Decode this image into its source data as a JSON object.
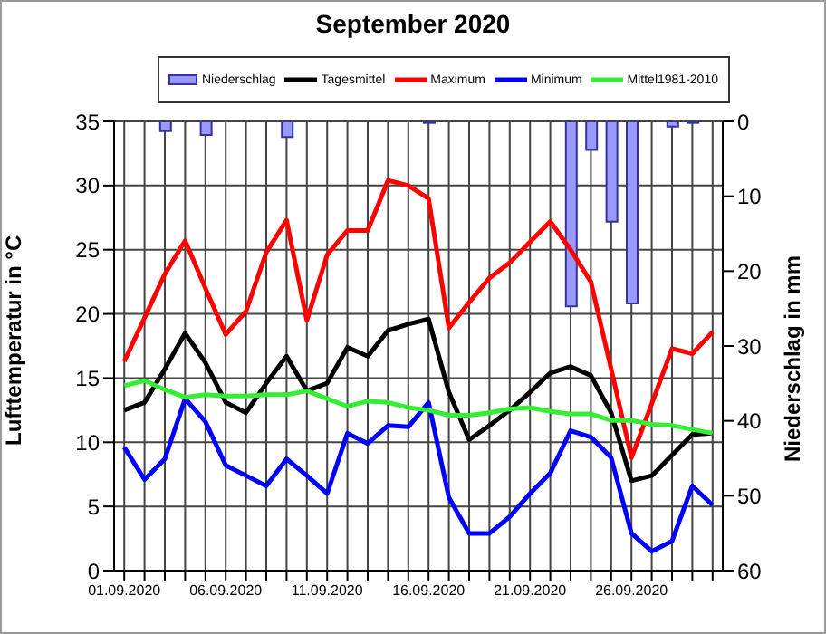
{
  "chart_data": {
    "type": "line",
    "title": "September 2020",
    "categories": [
      "01.09.2020",
      null,
      null,
      null,
      null,
      "06.09.2020",
      null,
      null,
      null,
      null,
      "11.09.2020",
      null,
      null,
      null,
      null,
      "16.09.2020",
      null,
      null,
      null,
      null,
      "21.09.2020",
      null,
      null,
      null,
      null,
      "26.09.2020",
      null,
      null,
      null,
      null
    ],
    "series": [
      {
        "name": "Niederschlag",
        "type": "bar",
        "axis": "y2",
        "color": "#9999ff",
        "values": [
          null,
          null,
          1.3,
          null,
          1.8,
          null,
          null,
          null,
          2.1,
          null,
          null,
          null,
          null,
          null,
          null,
          0.2,
          null,
          null,
          null,
          null,
          null,
          null,
          24.7,
          3.8,
          13.4,
          24.3,
          null,
          0.7,
          0.2,
          null
        ]
      },
      {
        "name": "Tagesmittel",
        "color": "#000000",
        "values": [
          12.5,
          13.1,
          15.7,
          18.5,
          16.2,
          13.1,
          12.3,
          14.6,
          16.7,
          14.0,
          14.6,
          17.4,
          16.7,
          18.7,
          19.2,
          19.6,
          13.9,
          10.2,
          11.3,
          12.5,
          13.9,
          15.4,
          15.9,
          15.2,
          12.3,
          7.0,
          7.4,
          9.0,
          10.6,
          10.7
        ]
      },
      {
        "name": "Maximum",
        "color": "#ff0000",
        "values": [
          16.3,
          19.7,
          23.1,
          25.7,
          22.0,
          18.4,
          20.2,
          24.8,
          27.3,
          19.5,
          24.6,
          26.5,
          26.5,
          30.4,
          30.0,
          29.0,
          18.9,
          20.9,
          22.8,
          24.0,
          25.6,
          27.2,
          25.0,
          22.5,
          15.7,
          8.8,
          13.0,
          17.3,
          16.9,
          18.6
        ]
      },
      {
        "name": "Minimum",
        "color": "#0000ff",
        "values": [
          9.6,
          7.1,
          8.7,
          13.4,
          11.6,
          8.2,
          7.4,
          6.6,
          8.7,
          7.4,
          6.0,
          10.7,
          9.9,
          11.3,
          11.2,
          13.1,
          5.7,
          2.9,
          2.9,
          4.2,
          6.0,
          7.6,
          10.9,
          10.4,
          8.8,
          2.9,
          1.5,
          2.3,
          6.6,
          5.1
        ]
      },
      {
        "name": "Mittel1981-2010",
        "color": "#33ee33",
        "values": [
          14.4,
          14.8,
          14.1,
          13.5,
          13.7,
          13.6,
          13.6,
          13.7,
          13.7,
          14.0,
          13.4,
          12.8,
          13.2,
          13.1,
          12.7,
          12.5,
          12.1,
          12.1,
          12.3,
          12.6,
          12.7,
          12.4,
          12.2,
          12.2,
          11.7,
          11.7,
          11.4,
          11.3,
          11.0,
          10.7
        ]
      }
    ],
    "ylabel": "Lufttemperatur in °C",
    "y2label": "Niederschlag in mm",
    "ylim": [
      0,
      35
    ],
    "yticks": [
      0,
      5,
      10,
      15,
      20,
      25,
      30,
      35
    ],
    "y2lim": [
      60,
      0
    ],
    "y2ticks": [
      0,
      10,
      20,
      30,
      40,
      50,
      60
    ],
    "grid": true,
    "legend": "top",
    "marker": "none",
    "line_style": "solid"
  }
}
